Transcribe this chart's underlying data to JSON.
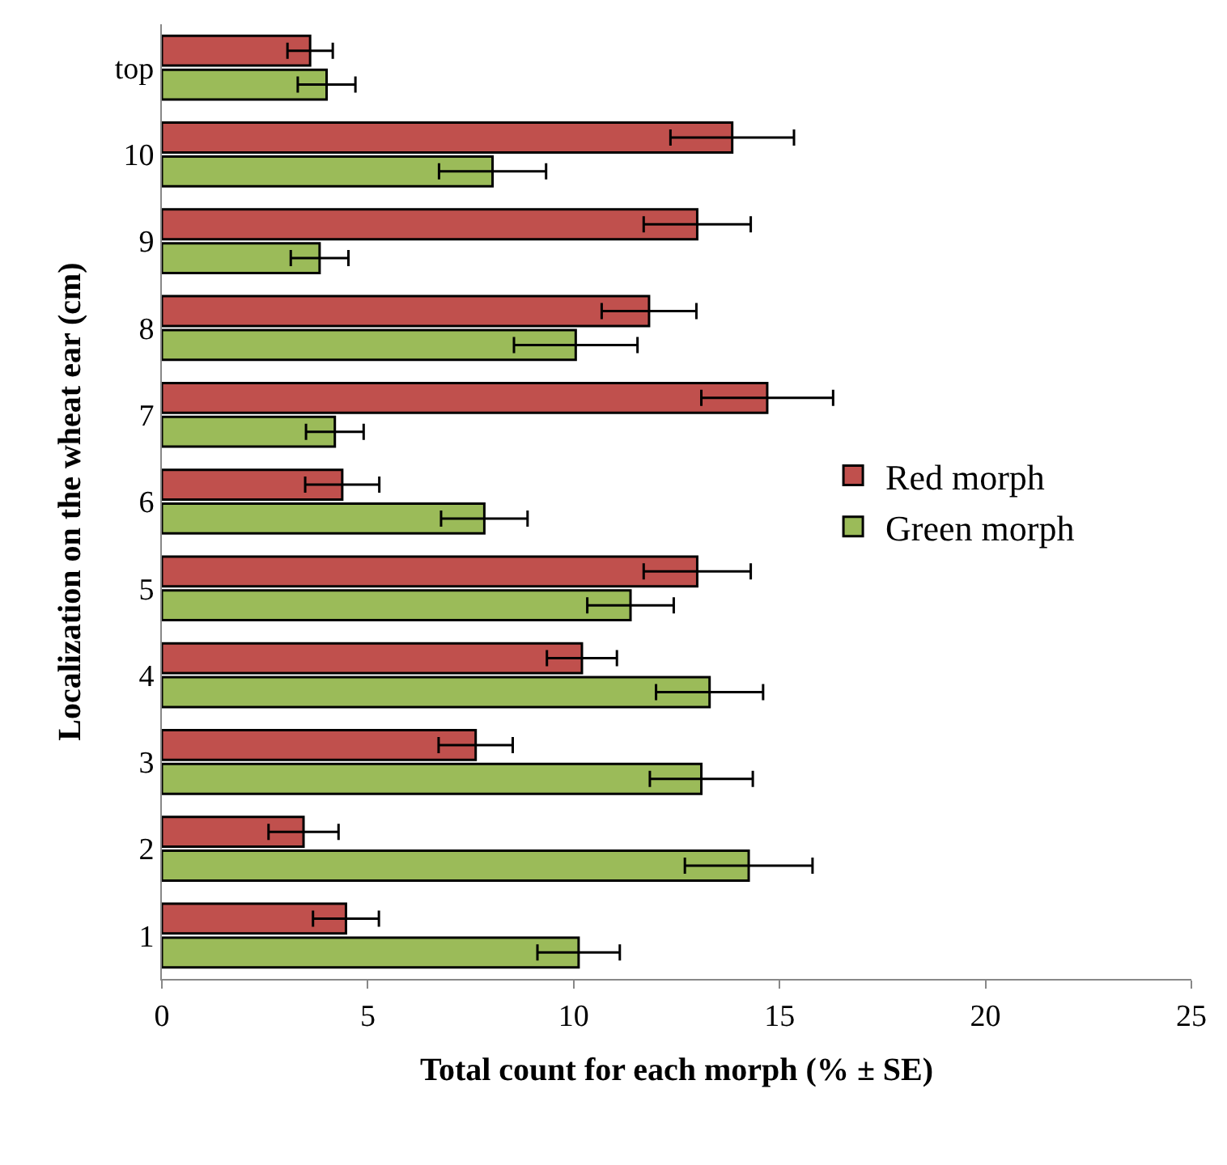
{
  "chart_data": {
    "type": "bar",
    "orientation": "horizontal",
    "xlabel": "Total count for each morph (% ± SE)",
    "ylabel": "Localization on the wheat ear (cm)",
    "categories": [
      "top",
      "10",
      "9",
      "8",
      "7",
      "6",
      "5",
      "4",
      "3",
      "2",
      "1"
    ],
    "series": [
      {
        "name": "Red morph",
        "color": "#c0504d",
        "values": [
          3.6,
          13.85,
          13.0,
          11.83,
          14.7,
          4.38,
          13.0,
          10.2,
          7.62,
          3.44,
          4.47
        ],
        "errors": [
          0.55,
          1.5,
          1.3,
          1.15,
          1.6,
          0.9,
          1.3,
          0.85,
          0.9,
          0.85,
          0.8
        ]
      },
      {
        "name": "Green morph",
        "color": "#9bbb59",
        "values": [
          4.0,
          8.03,
          3.83,
          10.05,
          4.2,
          7.83,
          11.38,
          13.3,
          13.1,
          14.25,
          10.12
        ],
        "errors": [
          0.7,
          1.3,
          0.7,
          1.5,
          0.7,
          1.05,
          1.05,
          1.3,
          1.25,
          1.55,
          1.0
        ]
      }
    ],
    "xlim": [
      0,
      25
    ],
    "xticks": [
      0,
      5,
      10,
      15,
      20,
      25
    ],
    "legend": "right"
  }
}
